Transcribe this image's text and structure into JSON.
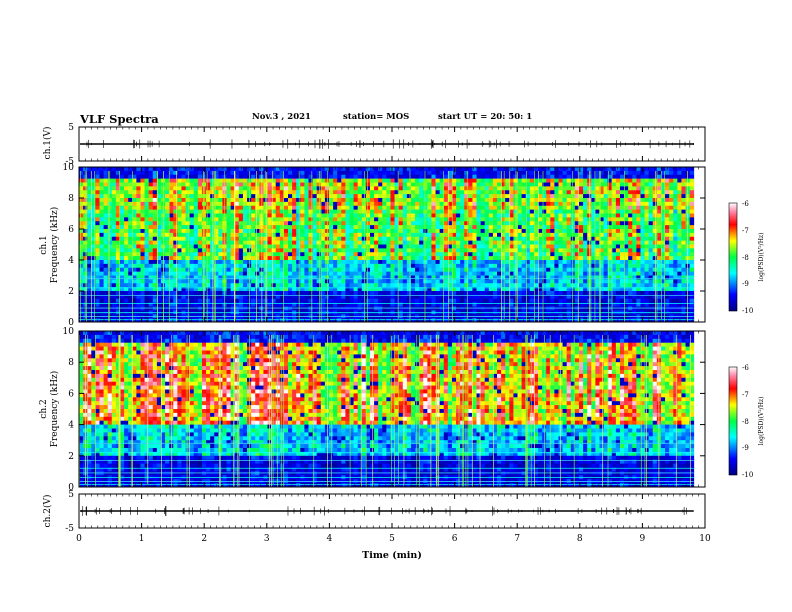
{
  "header": {
    "title": "VLF Spectra",
    "date": "Nov.3 , 2021",
    "station": "station= MOS",
    "start": "start UT = 20: 50: 1"
  },
  "chart_data": [
    {
      "type": "line",
      "panel": "ch1_waveform",
      "ylabel": "ch.1(V)",
      "yticks": [
        "5",
        "-5"
      ],
      "ylim": [
        -5,
        5
      ],
      "xlim": [
        0,
        10
      ],
      "series": [
        {
          "values_description_level": 0
        }
      ]
    },
    {
      "type": "heatmap",
      "panel": "ch1_spectrogram",
      "ylabel": "ch.1\nFrequency (kHz)",
      "ylabel_lines": [
        "ch.1",
        "Frequency (kHz)"
      ],
      "yticks": [
        "0",
        "2",
        "4",
        "6",
        "8",
        "10"
      ],
      "ylim": [
        0,
        10
      ],
      "xlim": [
        0,
        10
      ],
      "colorbar": {
        "label": "log(PSD)(V²/Hz)",
        "ticks": [
          "-6",
          "-7",
          "-8",
          "-9",
          "-10"
        ],
        "range": [
          -10,
          -6
        ]
      }
    },
    {
      "type": "heatmap",
      "panel": "ch2_spectrogram",
      "ylabel_lines": [
        "ch.2",
        "Frequency (kHz)"
      ],
      "yticks": [
        "0",
        "2",
        "4",
        "6",
        "8",
        "10"
      ],
      "ylim": [
        0,
        10
      ],
      "xlim": [
        0,
        10
      ],
      "colorbar": {
        "label": "log(PSD)(V²/Hz)",
        "ticks": [
          "-6",
          "-7",
          "-8",
          "-9",
          "-10"
        ],
        "range": [
          -10,
          -6
        ]
      }
    },
    {
      "type": "line",
      "panel": "ch2_waveform",
      "ylabel": "ch.2(V)",
      "yticks": [
        "5",
        "-5"
      ],
      "ylim": [
        -5,
        5
      ],
      "xlim": [
        0,
        10
      ],
      "xlabel": "Time (min)",
      "xticks": [
        "0",
        "1",
        "2",
        "3",
        "4",
        "5",
        "6",
        "7",
        "8",
        "9",
        "10"
      ]
    }
  ],
  "colors": {
    "low": "#00008b",
    "mid": "#00ff66",
    "high": "#ff0000",
    "top": "#ffffff"
  }
}
